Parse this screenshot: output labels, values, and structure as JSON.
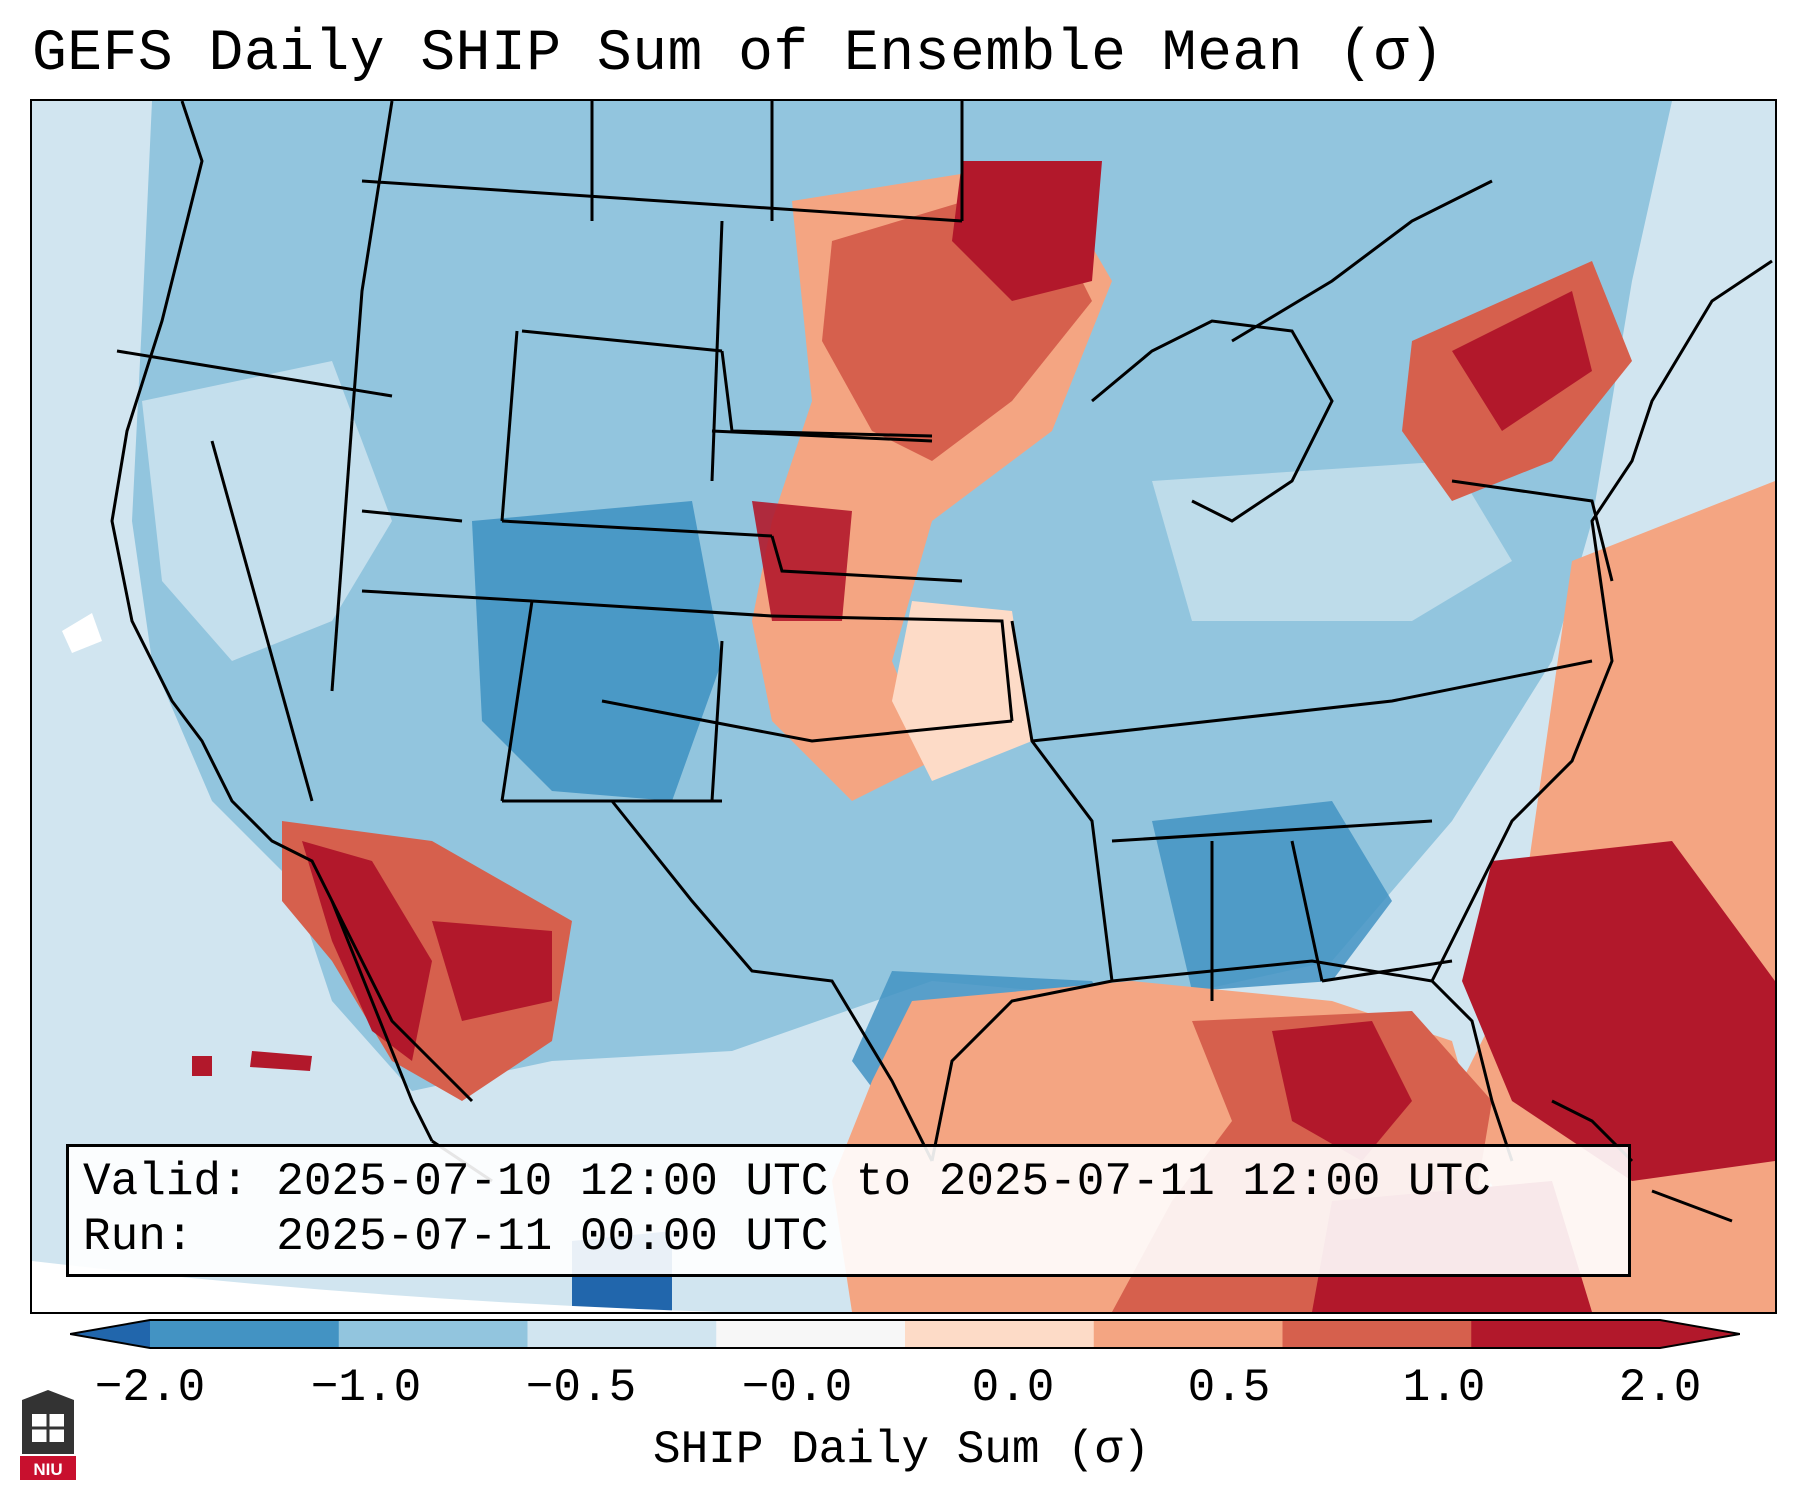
{
  "title": "GEFS Daily SHIP Sum of Ensemble Mean (σ)",
  "info": {
    "valid_line": "Valid: 2025-07-10 12:00 UTC to 2025-07-11 12:00 UTC",
    "run_line": "Run:   2025-07-11 00:00 UTC"
  },
  "colorbar": {
    "label": "SHIP Daily Sum (σ)",
    "tick_labels": [
      "−2.0",
      "−1.0",
      "−0.5",
      "−0.0",
      "0.0",
      "0.5",
      "1.0",
      "2.0"
    ],
    "bin_colors": [
      "#4393c3",
      "#92c5de",
      "#d1e5f0",
      "#f7f7f7",
      "#fddbc7",
      "#f4a582",
      "#d6604d",
      "#b2182b"
    ],
    "under_color": "#2166ac",
    "over_color": "#b2182b"
  },
  "logo": {
    "text": "NIU"
  }
}
